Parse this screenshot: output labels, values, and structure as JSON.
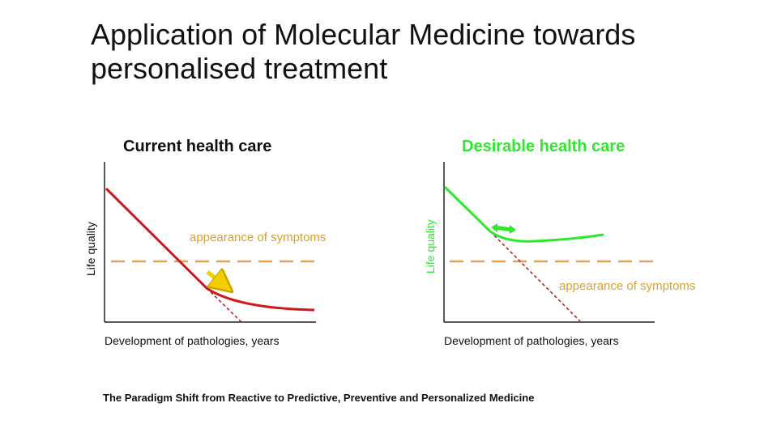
{
  "slide": {
    "title_line1": "Application of Molecular Medicine towards",
    "title_line2": "personalised treatment",
    "caption": "The Paradigm Shift from Reactive to Predictive, Preventive and Personalized Medicine"
  },
  "panels": [
    {
      "title": "Current health care",
      "ylabel": "Life quality",
      "xlabel": "Development of pathologies,  years",
      "threshold_label": "appearance of symptoms"
    },
    {
      "title": "Desirable health care",
      "ylabel": "Life quality",
      "xlabel": "Development of pathologies,  years",
      "threshold_label": "appearance of symptoms"
    }
  ],
  "colors": {
    "current_curve": "#d01818",
    "desirable_curve": "#2ee82e",
    "threshold": "#e8a050",
    "threshold_text": "#d9a030",
    "yellow_arrow": "#f2d000"
  }
}
